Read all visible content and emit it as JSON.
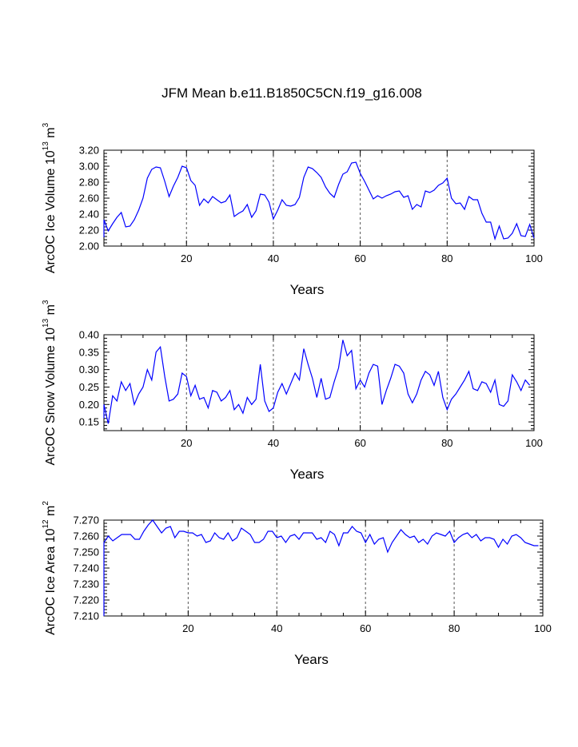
{
  "title": "JFM Mean b.e11.B1850C5CN.f19_g16.008",
  "colors": {
    "series": "#0000ff",
    "frame": "#000000",
    "grid": "#555555"
  },
  "chart_data": [
    {
      "type": "line",
      "ylabel": {
        "main": "ArcOC Ice Volume 10",
        "exp": "13",
        "unit": " m",
        "unit_exp": "3"
      },
      "xlabel": "Years",
      "xlim": [
        1,
        100
      ],
      "ylim": [
        2.0,
        3.2
      ],
      "xticks": [
        20,
        40,
        60,
        80,
        100
      ],
      "xtick_labels": [
        "20",
        "40",
        "60",
        "80",
        "100"
      ],
      "yticks": [
        2.0,
        2.2,
        2.4,
        2.6,
        2.8,
        3.0,
        3.2
      ],
      "ytick_labels": [
        "2.00",
        "2.20",
        "2.40",
        "2.60",
        "2.80",
        "3.00",
        "3.20"
      ],
      "grid_x": [
        20,
        40,
        60,
        80
      ],
      "values": [
        2.11,
        2.33,
        2.19,
        2.28,
        2.36,
        2.42,
        2.24,
        2.25,
        2.33,
        2.45,
        2.6,
        2.85,
        2.96,
        2.99,
        2.98,
        2.81,
        2.62,
        2.75,
        2.86,
        3.0,
        2.98,
        2.82,
        2.76,
        2.51,
        2.59,
        2.54,
        2.62,
        2.58,
        2.54,
        2.56,
        2.64,
        2.37,
        2.41,
        2.44,
        2.52,
        2.36,
        2.44,
        2.65,
        2.64,
        2.55,
        2.34,
        2.45,
        2.58,
        2.51,
        2.5,
        2.52,
        2.61,
        2.86,
        2.99,
        2.97,
        2.92,
        2.86,
        2.74,
        2.66,
        2.61,
        2.77,
        2.9,
        2.93,
        3.04,
        3.05,
        2.91,
        2.81,
        2.7,
        2.59,
        2.63,
        2.6,
        2.63,
        2.65,
        2.68,
        2.69,
        2.61,
        2.63,
        2.46,
        2.52,
        2.49,
        2.69,
        2.67,
        2.7,
        2.76,
        2.79,
        2.85,
        2.6,
        2.53,
        2.54,
        2.46,
        2.62,
        2.58,
        2.58,
        2.41,
        2.3,
        2.3,
        2.09,
        2.25,
        2.09,
        2.1,
        2.16,
        2.28,
        2.13,
        2.12,
        2.27,
        2.1
      ]
    },
    {
      "type": "line",
      "ylabel": {
        "main": "ArcOC Snow Volume 10",
        "exp": "13",
        "unit": " m",
        "unit_exp": "3"
      },
      "xlabel": "Years",
      "xlim": [
        1,
        100
      ],
      "ylim": [
        0.125,
        0.4
      ],
      "xticks": [
        20,
        40,
        60,
        80,
        100
      ],
      "xtick_labels": [
        "20",
        "40",
        "60",
        "80",
        "100"
      ],
      "yticks": [
        0.15,
        0.2,
        0.25,
        0.3,
        0.35,
        0.4
      ],
      "ytick_labels": [
        "0.15",
        "0.20",
        "0.25",
        "0.30",
        "0.35",
        "0.40"
      ],
      "grid_x": [
        20,
        40,
        60,
        80
      ],
      "values": [
        0.16,
        0.2,
        0.145,
        0.225,
        0.21,
        0.265,
        0.24,
        0.26,
        0.2,
        0.23,
        0.25,
        0.3,
        0.27,
        0.35,
        0.365,
        0.28,
        0.21,
        0.215,
        0.23,
        0.29,
        0.28,
        0.225,
        0.255,
        0.215,
        0.22,
        0.19,
        0.24,
        0.235,
        0.21,
        0.22,
        0.24,
        0.185,
        0.2,
        0.175,
        0.22,
        0.2,
        0.215,
        0.315,
        0.21,
        0.18,
        0.19,
        0.235,
        0.26,
        0.23,
        0.26,
        0.29,
        0.27,
        0.36,
        0.315,
        0.275,
        0.22,
        0.275,
        0.215,
        0.22,
        0.265,
        0.305,
        0.385,
        0.34,
        0.355,
        0.245,
        0.27,
        0.25,
        0.29,
        0.315,
        0.31,
        0.2,
        0.24,
        0.275,
        0.315,
        0.31,
        0.29,
        0.23,
        0.205,
        0.23,
        0.27,
        0.295,
        0.285,
        0.255,
        0.295,
        0.22,
        0.185,
        0.215,
        0.23,
        0.25,
        0.27,
        0.295,
        0.245,
        0.24,
        0.265,
        0.26,
        0.235,
        0.27,
        0.2,
        0.195,
        0.21,
        0.285,
        0.265,
        0.24,
        0.27,
        0.255
      ]
    },
    {
      "type": "line",
      "ylabel": {
        "main": "ArcOC Ice Area 10",
        "exp": "12",
        "unit": " m",
        "unit_exp": "2"
      },
      "xlabel": "Years",
      "xlim": [
        1,
        100
      ],
      "ylim": [
        7.21,
        7.27
      ],
      "xticks": [
        20,
        40,
        60,
        80,
        100
      ],
      "xtick_labels": [
        "20",
        "40",
        "60",
        "80",
        "100"
      ],
      "yticks": [
        7.21,
        7.22,
        7.23,
        7.24,
        7.25,
        7.26,
        7.27
      ],
      "ytick_labels": [
        "7.210",
        "7.220",
        "7.230",
        "7.240",
        "7.250",
        "7.260",
        "7.270"
      ],
      "grid_x": [
        20,
        40,
        60,
        80
      ],
      "values": [
        7.21,
        7.256,
        7.26,
        7.257,
        7.259,
        7.261,
        7.261,
        7.261,
        7.258,
        7.258,
        7.263,
        7.267,
        7.27,
        7.266,
        7.262,
        7.265,
        7.266,
        7.259,
        7.263,
        7.263,
        7.262,
        7.262,
        7.26,
        7.261,
        7.256,
        7.257,
        7.262,
        7.259,
        7.258,
        7.262,
        7.257,
        7.259,
        7.265,
        7.263,
        7.261,
        7.256,
        7.256,
        7.258,
        7.263,
        7.263,
        7.259,
        7.26,
        7.256,
        7.26,
        7.261,
        7.258,
        7.262,
        7.262,
        7.262,
        7.258,
        7.259,
        7.256,
        7.263,
        7.261,
        7.254,
        7.262,
        7.262,
        7.266,
        7.263,
        7.262,
        7.256,
        7.261,
        7.255,
        7.258,
        7.259,
        7.25,
        7.256,
        7.26,
        7.264,
        7.261,
        7.259,
        7.26,
        7.256,
        7.258,
        7.255,
        7.26,
        7.262,
        7.261,
        7.26,
        7.263,
        7.256,
        7.259,
        7.261,
        7.262,
        7.259,
        7.261,
        7.257,
        7.259,
        7.259,
        7.258,
        7.253,
        7.258,
        7.255,
        7.26,
        7.261,
        7.259,
        7.256,
        7.255,
        7.254,
        7.254
      ]
    }
  ]
}
